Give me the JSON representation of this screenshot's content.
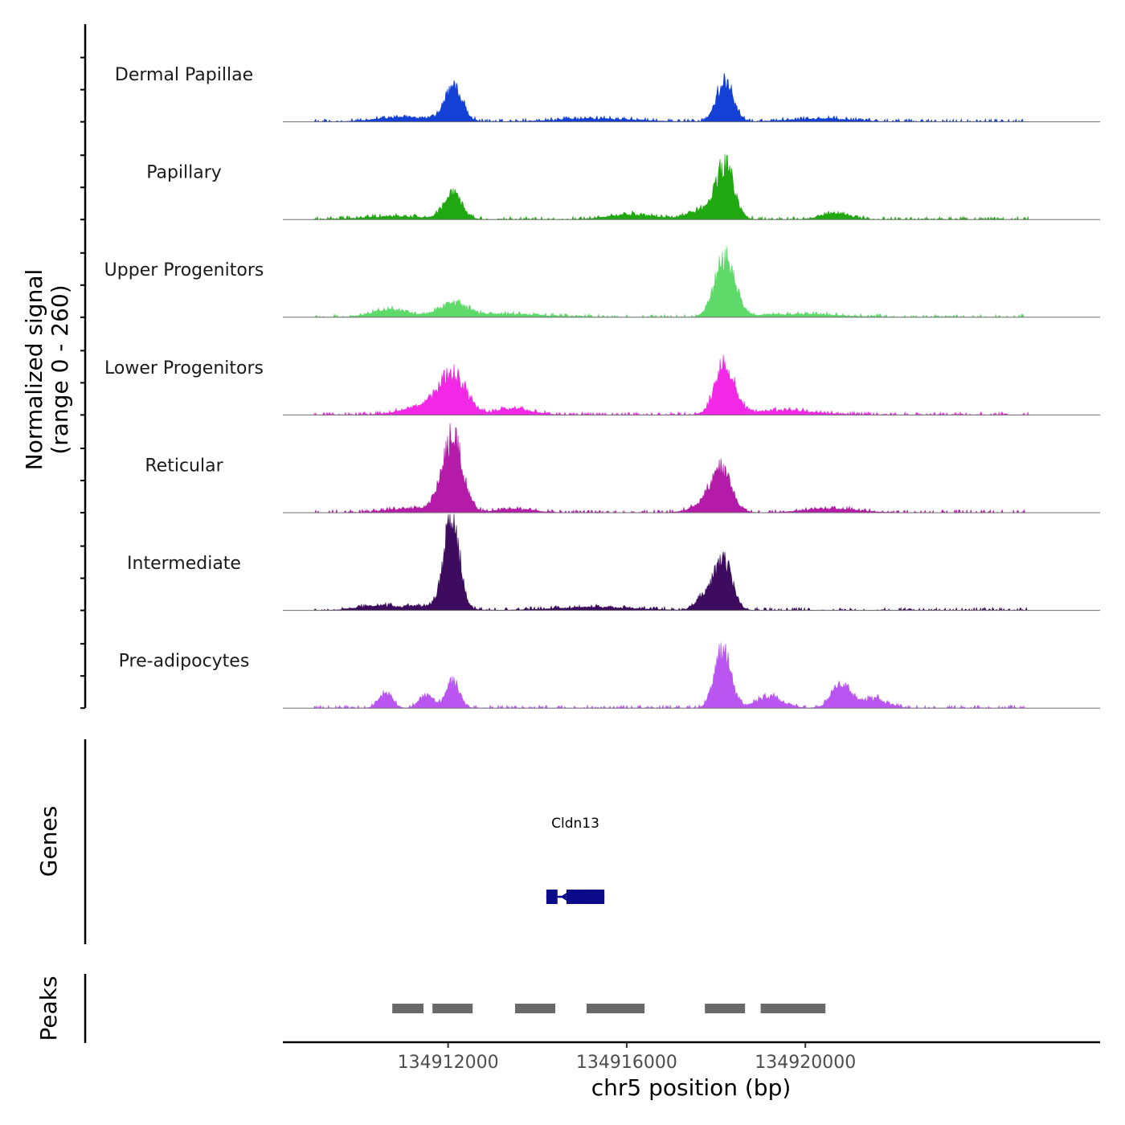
{
  "chart_data": {
    "type": "area",
    "title": "",
    "ylabel_line1": "Normalized signal",
    "ylabel_line2": "(range 0 - 260)",
    "yrange": [
      0,
      260
    ],
    "xlabel": "chr5 position (bp)",
    "chromosome": "chr5",
    "xlim": [
      134908300,
      134926600
    ],
    "xticks": [
      {
        "value": 134912000,
        "label": "134912000"
      },
      {
        "value": 134916000,
        "label": "134916000"
      },
      {
        "value": 134920000,
        "label": "134920000"
      }
    ],
    "signal_extent": [
      134909000,
      134925000
    ],
    "tracks": [
      {
        "name": "Dermal Papillae",
        "color": "#1440d6",
        "peaks": [
          [
            134912120,
            90,
            200
          ],
          [
            134918200,
            110,
            180
          ],
          [
            134911000,
            12,
            600
          ],
          [
            134915300,
            8,
            900
          ],
          [
            134920300,
            8,
            700
          ]
        ]
      },
      {
        "name": "Papillary",
        "color": "#1fa80f",
        "peaks": [
          [
            134912100,
            70,
            200
          ],
          [
            134918200,
            140,
            200
          ],
          [
            134917700,
            25,
            300
          ],
          [
            134916100,
            14,
            500
          ],
          [
            134920700,
            18,
            300
          ],
          [
            134910800,
            8,
            700
          ]
        ]
      },
      {
        "name": "Upper Progenitors",
        "color": "#5fd96a",
        "peaks": [
          [
            134912100,
            36,
            300
          ],
          [
            134918200,
            160,
            220
          ],
          [
            134910700,
            20,
            400
          ],
          [
            134913200,
            8,
            900
          ],
          [
            134919800,
            8,
            900
          ]
        ]
      },
      {
        "name": "Lower Progenitors",
        "color": "#f228e6",
        "peaks": [
          [
            134912100,
            100,
            300
          ],
          [
            134918200,
            130,
            220
          ],
          [
            134911500,
            22,
            500
          ],
          [
            134913500,
            16,
            400
          ],
          [
            134919500,
            12,
            700
          ]
        ]
      },
      {
        "name": "Reticular",
        "color": "#b31ba8",
        "peaks": [
          [
            134912090,
            205,
            230
          ],
          [
            134918100,
            105,
            230
          ],
          [
            134917800,
            18,
            350
          ],
          [
            134911200,
            12,
            500
          ],
          [
            134913500,
            10,
            400
          ],
          [
            134920600,
            10,
            600
          ]
        ]
      },
      {
        "name": "Intermediate",
        "color": "#3d0c5e",
        "peaks": [
          [
            134912080,
            245,
            170
          ],
          [
            134918150,
            140,
            200
          ],
          [
            134917700,
            30,
            180
          ],
          [
            134910300,
            10,
            400
          ],
          [
            134911500,
            12,
            600
          ],
          [
            134915300,
            8,
            900
          ]
        ]
      },
      {
        "name": "Pre-adipocytes",
        "color": "#bb55f2",
        "peaks": [
          [
            134912100,
            70,
            150
          ],
          [
            134918150,
            155,
            180
          ],
          [
            134920800,
            70,
            200
          ],
          [
            134910600,
            40,
            150
          ],
          [
            134911500,
            35,
            150
          ],
          [
            134919200,
            30,
            300
          ],
          [
            134921500,
            25,
            300
          ]
        ]
      }
    ],
    "genes_label": "Genes",
    "genes": [
      {
        "name": "Cldn13",
        "strand": "-",
        "start": 134914200,
        "end": 134915500,
        "color": "#0b0b8a",
        "exons": [
          [
            134914200,
            134914450
          ],
          [
            134914650,
            134915500
          ]
        ]
      }
    ],
    "peaks_label": "Peaks",
    "peaks_color": "#696969",
    "peak_regions": [
      [
        134910750,
        134911450
      ],
      [
        134911650,
        134912550
      ],
      [
        134913500,
        134914400
      ],
      [
        134915100,
        134916400
      ],
      [
        134917750,
        134918650
      ],
      [
        134919000,
        134920450
      ]
    ]
  }
}
